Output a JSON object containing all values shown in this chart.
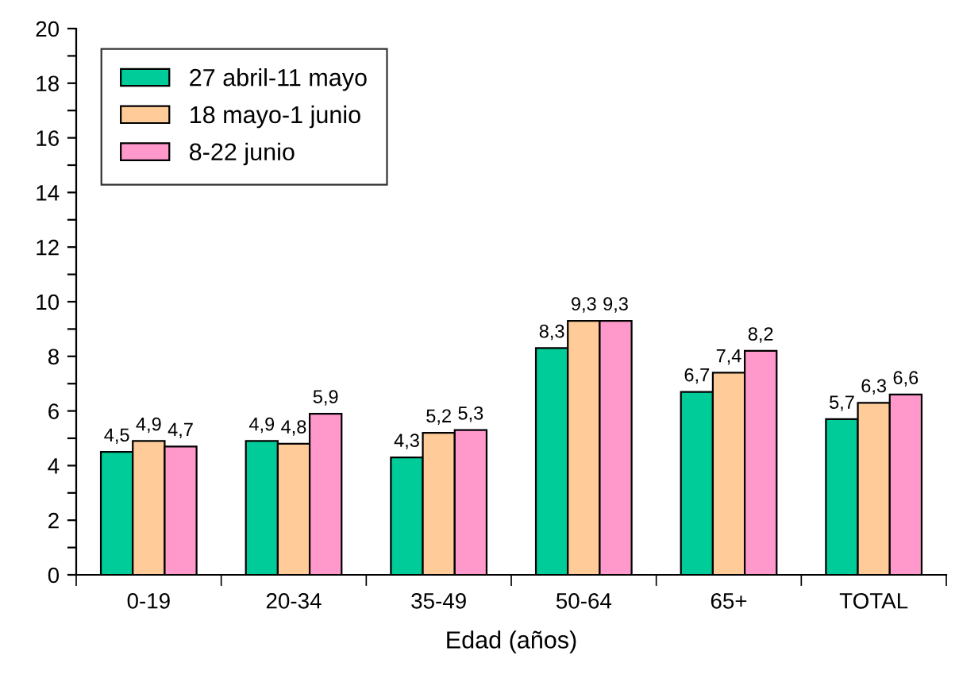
{
  "chart_data": {
    "type": "bar",
    "xlabel": "Edad (años)",
    "categories": [
      "0-19",
      "20-34",
      "35-49",
      "50-64",
      "65+",
      "TOTAL"
    ],
    "series": [
      {
        "name": "27 abril-11 mayo",
        "color": "#00cc99",
        "values": [
          4.5,
          4.9,
          4.3,
          8.3,
          6.7,
          5.7
        ],
        "value_labels": [
          "4,5",
          "4,9",
          "4,3",
          "8,3",
          "6,7",
          "5,7"
        ]
      },
      {
        "name": "18 mayo-1 junio",
        "color": "#ffcc99",
        "values": [
          4.9,
          4.8,
          5.2,
          9.3,
          7.4,
          6.3
        ],
        "value_labels": [
          "4,9",
          "4,8",
          "5,2",
          "9,3",
          "7,4",
          "6,3"
        ]
      },
      {
        "name": "8-22 junio",
        "color": "#ff99cc",
        "values": [
          4.7,
          5.9,
          5.3,
          9.3,
          8.2,
          6.6
        ],
        "value_labels": [
          "4,7",
          "5,9",
          "5,3",
          "9,3",
          "8,2",
          "6,6"
        ]
      }
    ],
    "ylim": [
      0,
      20
    ],
    "yticks": [
      0,
      {
        "value": 1,
        "label": null
      },
      2,
      {
        "value": 3,
        "label": null
      },
      4,
      {
        "value": 5,
        "label": null
      },
      6,
      {
        "value": 7,
        "label": null
      },
      8,
      {
        "value": 9,
        "label": null
      },
      10,
      {
        "value": 11,
        "label": null
      },
      12,
      {
        "value": 13,
        "label": null
      },
      14,
      {
        "value": 15,
        "label": null
      },
      16,
      {
        "value": 17,
        "label": null
      },
      18,
      {
        "value": 19,
        "label": null
      },
      20
    ],
    "grid": false,
    "legend": "top left"
  }
}
